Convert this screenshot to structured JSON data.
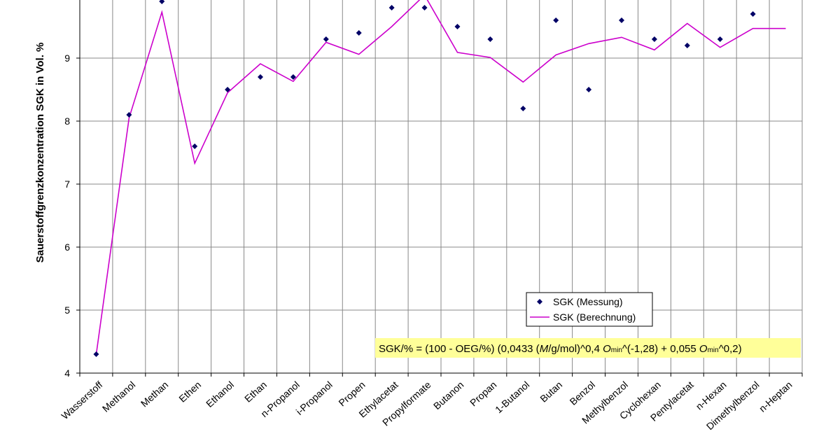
{
  "chart_data": {
    "type": "line+scatter",
    "title": "",
    "xlabel": "",
    "ylabel": "Sauerstoffgrenzkonzentration SGK in Vol. %",
    "ylim": [
      4,
      10
    ],
    "yticks": [
      4,
      5,
      6,
      7,
      8,
      9
    ],
    "grid": true,
    "legend_position": "bottom-right",
    "categories": [
      "Wasserstoff",
      "Methanol",
      "Methan",
      "Ethen",
      "Ethanol",
      "Ethan",
      "n-Propanol",
      "i-Propanol",
      "Propen",
      "Ethylacetat",
      "Propylformate",
      "Butanon",
      "Propan",
      "1-Butanol",
      "Butan",
      "Benzol",
      "Methylbenzol",
      "Cyclohexan",
      "Pentylacetat",
      "n-Hexan",
      "Dimethylbenzol",
      "n-Heptan"
    ],
    "series": [
      {
        "name": "SGK (Messung)",
        "kind": "scatter",
        "color": "#000066",
        "values": [
          4.3,
          8.1,
          9.9,
          7.6,
          8.5,
          8.7,
          8.7,
          9.3,
          9.4,
          9.8,
          9.8,
          9.5,
          9.3,
          8.2,
          9.6,
          8.5,
          9.6,
          9.3,
          9.2,
          9.3,
          9.7,
          null
        ]
      },
      {
        "name": "SGK (Berechnung)",
        "kind": "line",
        "color": "#cc00cc",
        "values": [
          4.3,
          8.05,
          9.73,
          7.33,
          8.45,
          8.91,
          8.63,
          9.25,
          9.06,
          9.5,
          10.0,
          9.09,
          9.01,
          8.62,
          9.05,
          9.23,
          9.33,
          9.13,
          9.55,
          9.17,
          9.47,
          9.47
        ]
      }
    ],
    "formula": {
      "prefix": "SGK/% = (100 - OEG/%) (0,0433 (",
      "M": "M",
      "mid1": "/g/mol)^0,4 ",
      "O1": "O",
      "sub1": "min",
      "mid2": "^(-1,28) + 0,055 ",
      "O2": "O",
      "sub2": "min",
      "suffix": "^0,2)",
      "background": "#ffff99"
    }
  }
}
